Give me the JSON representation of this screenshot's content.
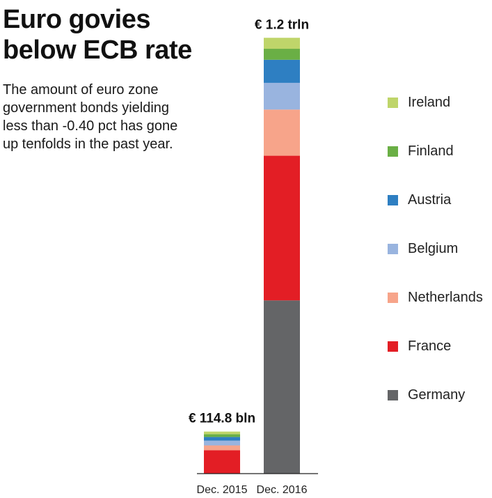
{
  "title_lines": [
    "Euro govies",
    "below ECB rate"
  ],
  "subtitle_lines": [
    "The amount of euro zone",
    "government bonds yielding",
    "less than -0.40 pct has gone",
    "up tenfolds in the past year."
  ],
  "chart_data": {
    "type": "bar",
    "stacked": true,
    "unit": "EUR bln",
    "categories": [
      "Dec. 2015",
      "Dec. 2016"
    ],
    "totals": [
      114.8,
      1200
    ],
    "total_labels": [
      "€ 114.8 bln",
      "€ 1.2 trln"
    ],
    "series": [
      {
        "name": "Germany",
        "color": "#646567",
        "values": [
          0,
          473
        ]
      },
      {
        "name": "France",
        "color": "#e31e25",
        "values": [
          64,
          395
        ]
      },
      {
        "name": "Netherlands",
        "color": "#f7a48a",
        "values": [
          13,
          126
        ]
      },
      {
        "name": "Belgium",
        "color": "#99b4df",
        "values": [
          13,
          73
        ]
      },
      {
        "name": "Austria",
        "color": "#2e7fc2",
        "values": [
          10,
          63
        ]
      },
      {
        "name": "Finland",
        "color": "#6aaf45",
        "values": [
          7.8,
          30
        ]
      },
      {
        "name": "Ireland",
        "color": "#bfd56a",
        "values": [
          7,
          30
        ]
      }
    ],
    "legend_order": [
      "Ireland",
      "Finland",
      "Austria",
      "Belgium",
      "Netherlands",
      "France",
      "Germany"
    ],
    "legend_position": "right",
    "grid": false,
    "ylim": [
      0,
      1200
    ]
  }
}
